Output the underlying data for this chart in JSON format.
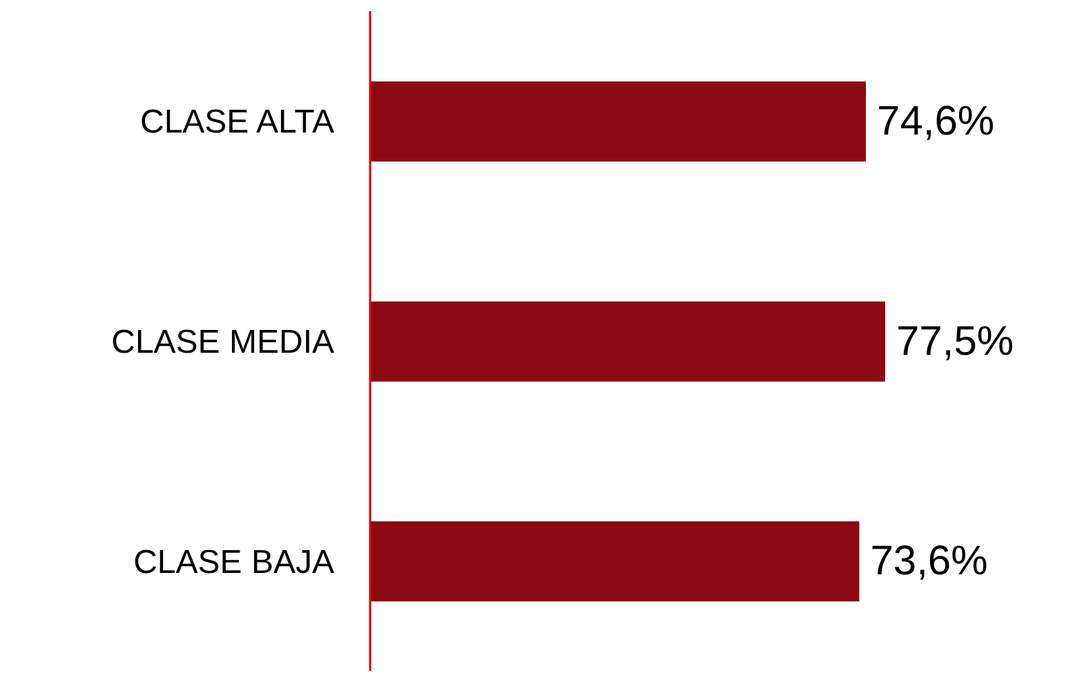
{
  "chart_data": {
    "type": "bar",
    "orientation": "horizontal",
    "categories": [
      "CLASE ALTA",
      "CLASE MEDIA",
      "CLASE BAJA"
    ],
    "series": [
      {
        "color": "#8b0a14",
        "values": [
          74.6,
          77.5,
          73.6
        ],
        "value_labels": [
          "74,6%",
          "77,5%",
          "73,6%"
        ]
      }
    ],
    "tick_labels": "y",
    "grid": false,
    "legend": false
  }
}
